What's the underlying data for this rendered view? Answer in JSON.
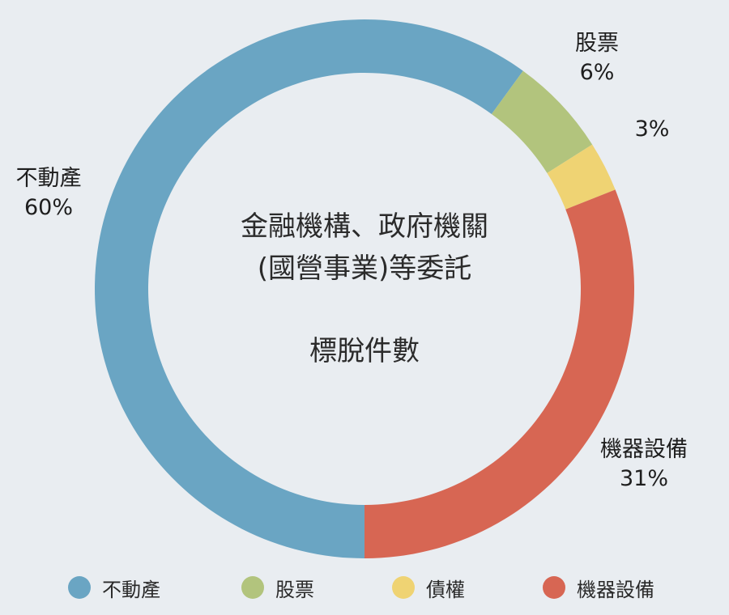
{
  "chart_data": {
    "type": "pie",
    "title_lines": [
      "金融機構、政府機關",
      "(國營事業)等委託",
      "標脫件數"
    ],
    "categories": [
      "不動產",
      "股票",
      "債權",
      "機器設備"
    ],
    "values": [
      60,
      6,
      3,
      31
    ],
    "value_labels": [
      "60%",
      "6%",
      "3%",
      "31%"
    ],
    "colors": [
      "#6aa5c3",
      "#b2c47d",
      "#efd373",
      "#d76653"
    ],
    "legend": [
      "不動產",
      "股票",
      "債權",
      "機器設備"
    ],
    "donut": true
  }
}
